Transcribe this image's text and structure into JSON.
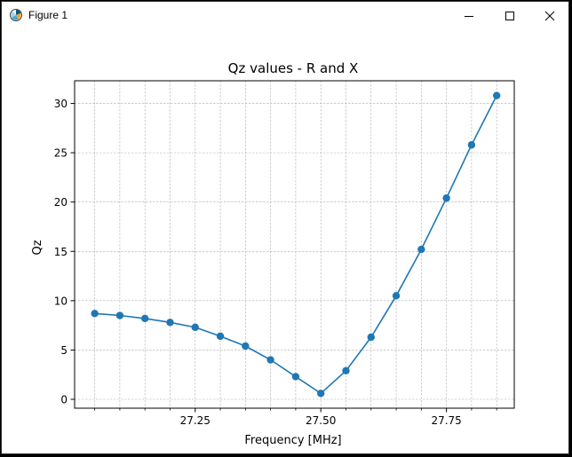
{
  "window": {
    "title": "Figure 1",
    "icon": "matplotlib-figure-icon",
    "controls": [
      "minimize-icon",
      "maximize-icon",
      "close-icon"
    ]
  },
  "colors": {
    "line": "#1f77b4",
    "grid": "#b0b0b0",
    "axes": "#000000"
  },
  "chart_data": {
    "type": "line",
    "title": "Qz values - R and X",
    "xlabel": "Frequency [MHz]",
    "ylabel": "Qz",
    "xlim": [
      27.01,
      27.885
    ],
    "ylim": [
      -0.9,
      32.3
    ],
    "x_ticks": [
      27.25,
      27.5,
      27.75
    ],
    "x_tick_labels": [
      "27.25",
      "27.50",
      "27.75"
    ],
    "x_minor_ticks": [
      27.05,
      27.1,
      27.15,
      27.2,
      27.3,
      27.35,
      27.4,
      27.45,
      27.55,
      27.6,
      27.65,
      27.7,
      27.8,
      27.85
    ],
    "y_ticks": [
      0,
      5,
      10,
      15,
      20,
      25,
      30
    ],
    "y_tick_labels": [
      "0",
      "5",
      "10",
      "15",
      "20",
      "25",
      "30"
    ],
    "grid": true,
    "marker": "circle",
    "series": [
      {
        "x": [
          27.05,
          27.1,
          27.15,
          27.2,
          27.25,
          27.3,
          27.35,
          27.4,
          27.45,
          27.5,
          27.55,
          27.6,
          27.65,
          27.7,
          27.75,
          27.8,
          27.85
        ],
        "values": [
          8.7,
          8.5,
          8.2,
          7.8,
          7.3,
          6.4,
          5.4,
          4.0,
          2.3,
          0.6,
          2.9,
          6.3,
          10.5,
          15.2,
          20.4,
          25.8,
          30.8
        ]
      }
    ]
  }
}
